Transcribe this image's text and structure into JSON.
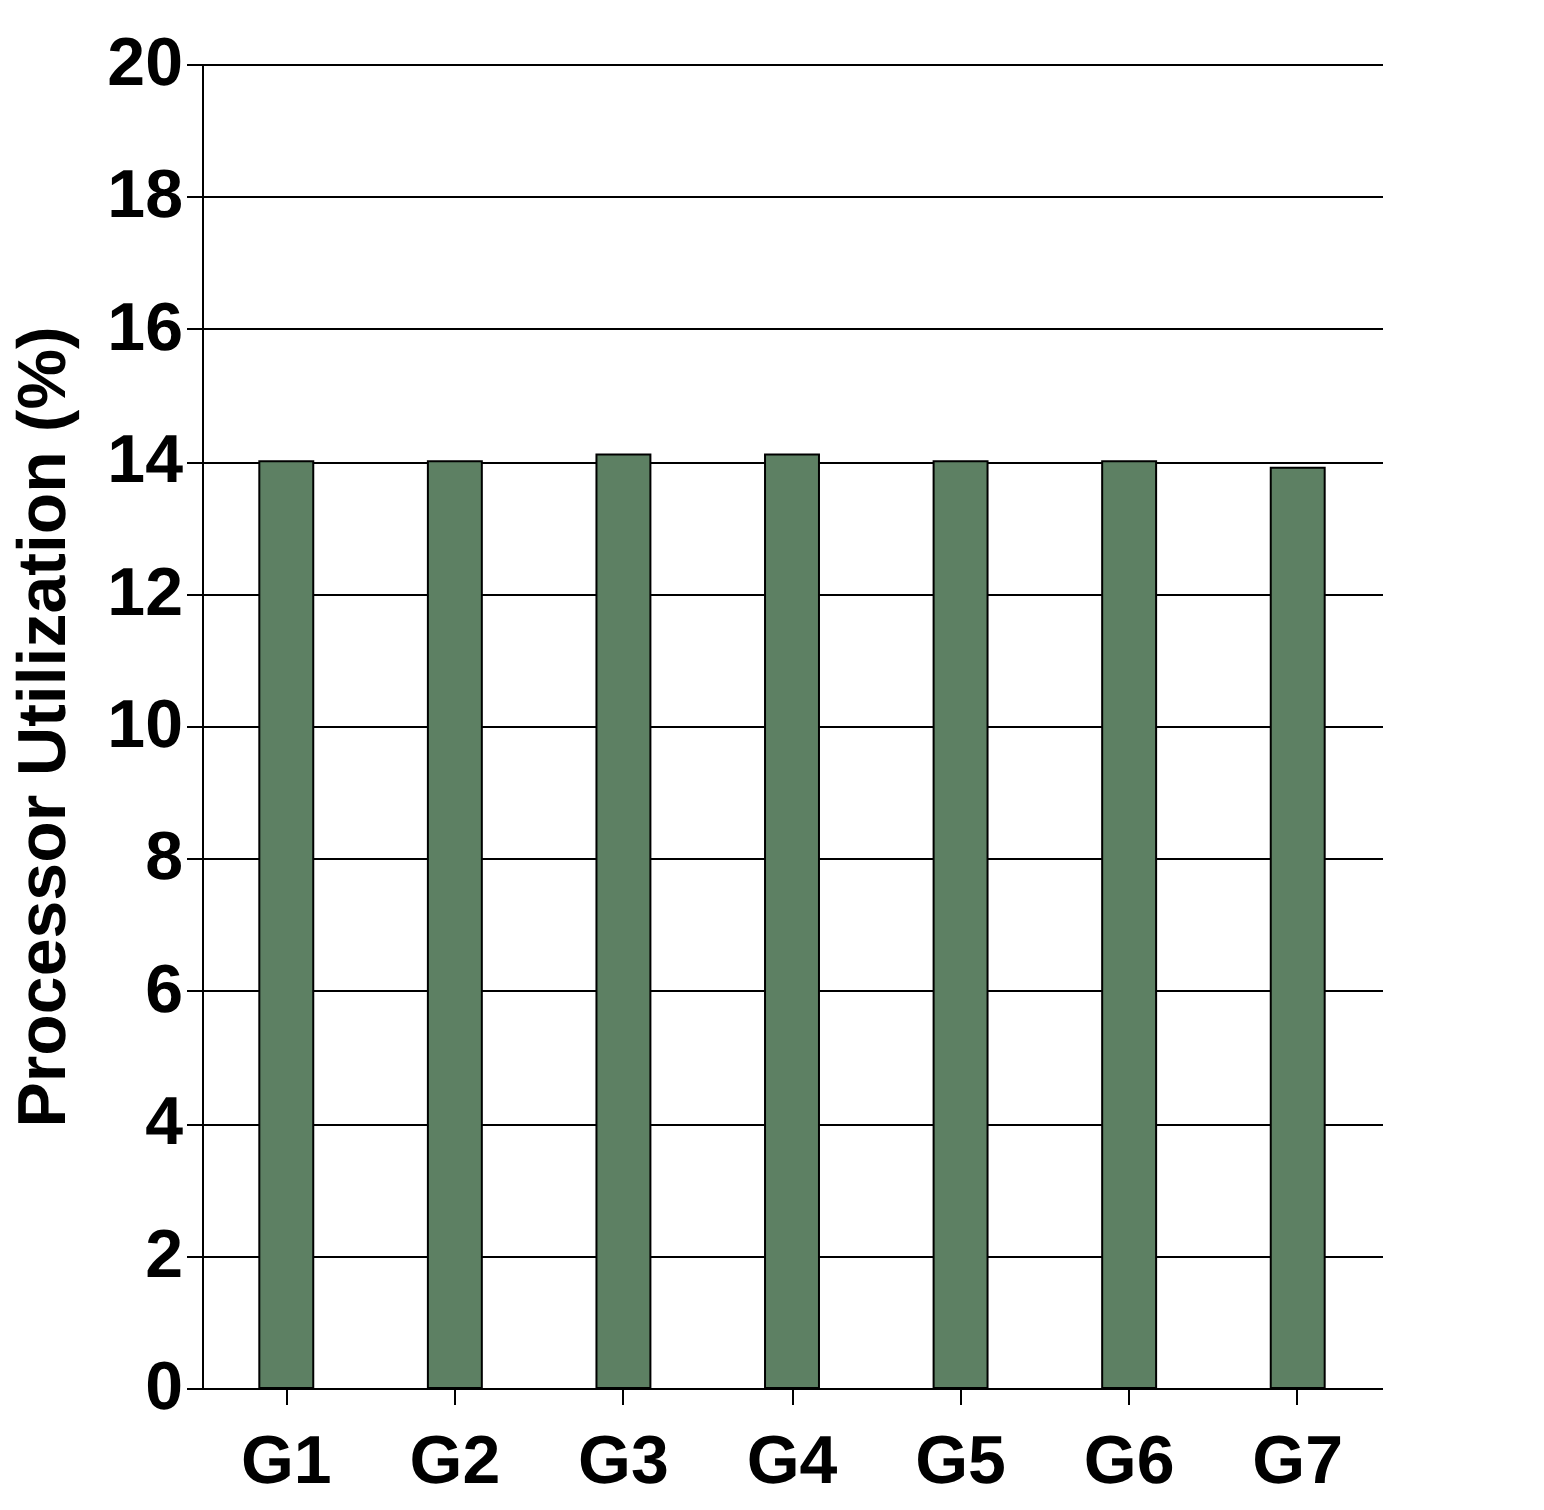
{
  "chart_data": {
    "type": "bar",
    "ylabel": "Processor Utilization (%)",
    "categories": [
      "G1",
      "G2",
      "G3",
      "G4",
      "G5",
      "G6",
      "G7"
    ],
    "values": [
      14.0,
      14.0,
      14.1,
      14.1,
      14.0,
      14.0,
      13.9
    ],
    "color": "#5d8063",
    "ylim": [
      0,
      20
    ],
    "yticks": [
      0,
      2,
      4,
      6,
      8,
      10,
      12,
      14,
      16,
      18,
      20
    ],
    "grid": "y"
  }
}
